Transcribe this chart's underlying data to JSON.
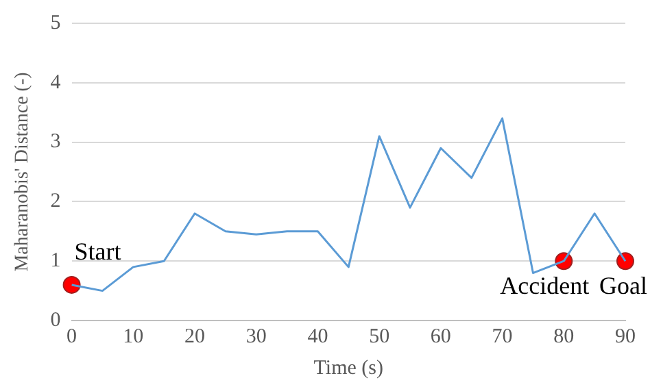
{
  "chart_data": {
    "type": "line",
    "xlabel": "Time (s)",
    "ylabel": "Maharanobis' Distance (-)",
    "xlim": [
      0,
      90
    ],
    "xticks": [
      0,
      10,
      20,
      30,
      40,
      50,
      60,
      70,
      80,
      90
    ],
    "ylim": [
      0,
      5
    ],
    "yticks": [
      0,
      1,
      2,
      3,
      4,
      5
    ],
    "grid": "y",
    "legend": false,
    "series": [
      {
        "color": "#5b9bd5",
        "marker": "none",
        "x": [
          0,
          5,
          10,
          15,
          20,
          25,
          30,
          35,
          40,
          45,
          50,
          55,
          60,
          65,
          70,
          75,
          80,
          85,
          90
        ],
        "values": [
          0.6,
          0.5,
          0.9,
          1.0,
          1.8,
          1.5,
          1.45,
          1.5,
          1.5,
          0.9,
          3.1,
          1.9,
          2.9,
          2.4,
          3.4,
          0.8,
          1.0,
          1.8,
          1.0
        ]
      },
      {
        "type": "scatter",
        "color": "#ff0000",
        "marker": "circle",
        "x": [
          0,
          80,
          90
        ],
        "values": [
          0.6,
          1.0,
          1.0
        ]
      }
    ],
    "annotations": [
      {
        "text": "Start",
        "x": 0,
        "y": 0.6
      },
      {
        "text": "Accident",
        "x": 80,
        "y": 1.0
      },
      {
        "text": "Goal",
        "x": 90,
        "y": 1.0
      }
    ]
  }
}
